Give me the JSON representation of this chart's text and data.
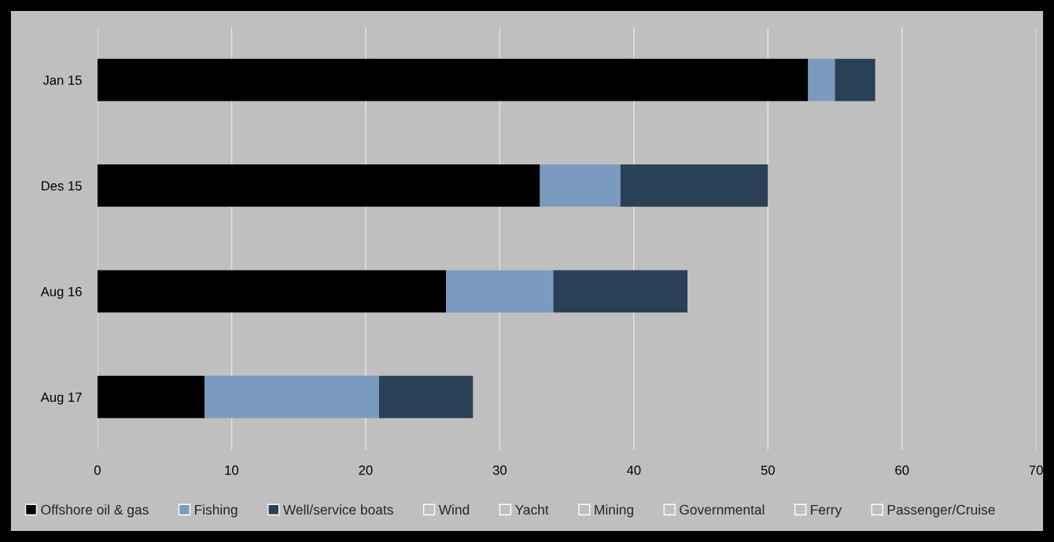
{
  "chart_data": {
    "type": "bar",
    "orientation": "horizontal",
    "stacked": true,
    "categories": [
      "Jan 15",
      "Des 15",
      "Aug 16",
      "Aug 17"
    ],
    "series": [
      {
        "name": "Offshore oil & gas",
        "color": "#000000",
        "values": [
          53,
          33,
          26,
          8
        ]
      },
      {
        "name": "Fishing",
        "color": "#7a9bbf",
        "values": [
          2,
          6,
          8,
          13
        ]
      },
      {
        "name": "Well/service boats",
        "color": "#2a4057",
        "values": [
          3,
          11,
          10,
          7
        ]
      },
      {
        "name": "Wind",
        "color": "#bfbfbf",
        "values": [
          0,
          0,
          0,
          0
        ]
      },
      {
        "name": "Yacht",
        "color": "#bfbfbf",
        "values": [
          0,
          0,
          0,
          0
        ]
      },
      {
        "name": "Mining",
        "color": "#bfbfbf",
        "values": [
          0,
          0,
          0,
          0
        ]
      },
      {
        "name": "Governmental",
        "color": "#bfbfbf",
        "values": [
          0,
          0,
          0,
          0
        ]
      },
      {
        "name": "Ferry",
        "color": "#bfbfbf",
        "values": [
          0,
          0,
          0,
          0
        ]
      },
      {
        "name": "Passenger/Cruise",
        "color": "#bfbfbf",
        "values": [
          0,
          0,
          0,
          0
        ]
      }
    ],
    "xlim": [
      0,
      70
    ],
    "xticks": [
      0,
      10,
      20,
      30,
      40,
      50,
      60,
      70
    ],
    "grid": "x",
    "legend": "bottom"
  }
}
